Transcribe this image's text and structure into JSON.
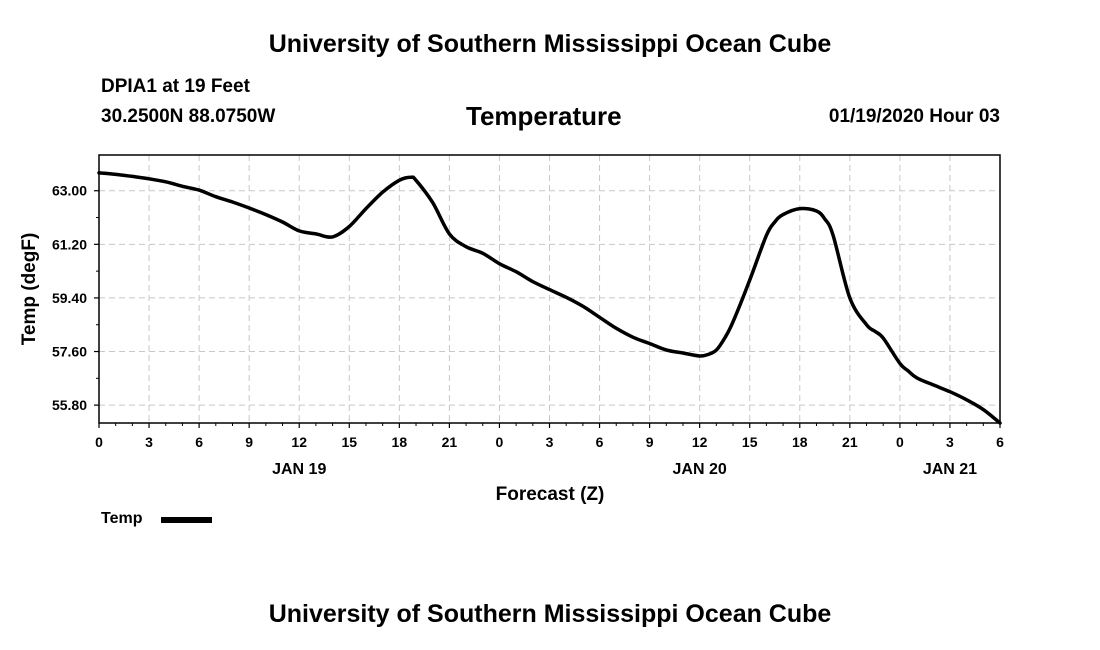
{
  "header": {
    "title_top": "University of Southern Mississippi Ocean Cube",
    "station": "DPIA1 at 19 Feet",
    "coords": "30.2500N 88.0750W",
    "datetime": "01/19/2020 Hour 03",
    "title_bottom": "University of Southern Mississippi Ocean Cube"
  },
  "legend": {
    "label": "Temp"
  },
  "chart_data": {
    "type": "line",
    "title": "Temperature",
    "xlabel": "Forecast (Z)",
    "ylabel": "Temp (degF)",
    "grid": true,
    "xlim": [
      0,
      54
    ],
    "ylim": [
      55.2,
      64.2
    ],
    "x_tick_values": [
      0,
      3,
      6,
      9,
      12,
      15,
      18,
      21,
      24,
      27,
      30,
      33,
      36,
      39,
      42,
      45,
      48,
      51,
      54
    ],
    "x_tick_labels": [
      "0",
      "3",
      "6",
      "9",
      "12",
      "15",
      "18",
      "21",
      "0",
      "3",
      "6",
      "9",
      "12",
      "15",
      "18",
      "21",
      "0",
      "3",
      "6"
    ],
    "date_labels": [
      {
        "x": 12,
        "label": "JAN 19"
      },
      {
        "x": 36,
        "label": "JAN 20"
      },
      {
        "x": 51,
        "label": "JAN 21"
      }
    ],
    "y_ticks": [
      55.8,
      57.6,
      59.4,
      61.2,
      63.0
    ],
    "y_tick_labels": [
      "55.80",
      "57.60",
      "59.40",
      "61.20",
      "63.00"
    ],
    "series": [
      {
        "name": "Temp",
        "color": "#000000",
        "x": [
          0,
          1,
          2,
          3,
          4,
          5,
          6,
          7,
          8,
          9,
          10,
          11,
          12,
          13,
          14,
          15,
          16,
          17,
          18,
          18.7,
          19,
          20,
          21,
          22,
          23,
          24,
          25,
          26,
          27,
          28,
          29,
          30,
          31,
          32,
          33,
          34,
          35,
          36,
          36.5,
          37,
          37.5,
          38,
          39,
          40,
          40.5,
          41,
          42,
          43,
          43.5,
          44,
          45,
          46,
          46.5,
          47,
          48,
          48.5,
          49,
          50,
          51,
          52,
          53,
          54
        ],
        "values": [
          63.6,
          63.55,
          63.48,
          63.4,
          63.3,
          63.15,
          63.02,
          62.8,
          62.62,
          62.42,
          62.2,
          61.95,
          61.65,
          61.55,
          61.45,
          61.8,
          62.4,
          62.95,
          63.35,
          63.45,
          63.35,
          62.6,
          61.55,
          61.12,
          60.9,
          60.55,
          60.28,
          59.95,
          59.68,
          59.42,
          59.12,
          58.75,
          58.38,
          58.08,
          57.87,
          57.65,
          57.55,
          57.45,
          57.5,
          57.65,
          58.05,
          58.6,
          60.0,
          61.5,
          61.95,
          62.2,
          62.4,
          62.32,
          62.05,
          61.5,
          59.4,
          58.5,
          58.28,
          58.05,
          57.2,
          56.95,
          56.72,
          56.48,
          56.25,
          55.98,
          55.65,
          55.2
        ]
      }
    ]
  }
}
